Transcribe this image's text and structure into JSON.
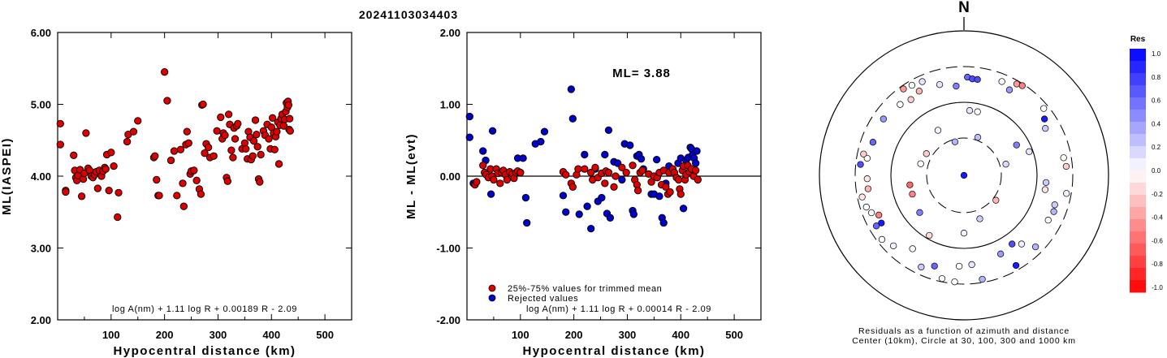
{
  "title": "20241103034403",
  "colors": {
    "accepted": "#dd0000",
    "rejected": "#0000cc"
  },
  "chart_data": [
    {
      "type": "scatter",
      "xlabel": "Hypocentral distance (km)",
      "ylabel": "ML(IASPEI)",
      "xlim": [
        0,
        550
      ],
      "ylim": [
        2.0,
        6.0
      ],
      "xticks": [
        "100",
        "200",
        "300",
        "400",
        "500"
      ],
      "yticks": [
        "2.00",
        "3.00",
        "4.00",
        "5.00",
        "6.00"
      ],
      "formula": "log A(nm) + 1.11 log R + 0.00189 R - 2.09",
      "points": [
        [
          5,
          4.73
        ],
        [
          5,
          4.44
        ],
        [
          15,
          3.8
        ],
        [
          15,
          3.78
        ],
        [
          30,
          4.29
        ],
        [
          32,
          4.08
        ],
        [
          34,
          3.98
        ],
        [
          36,
          3.94
        ],
        [
          38,
          4.01
        ],
        [
          42,
          4.09
        ],
        [
          45,
          3.72
        ],
        [
          48,
          3.96
        ],
        [
          50,
          4.04
        ],
        [
          53,
          4.6
        ],
        [
          57,
          4.11
        ],
        [
          60,
          4.08
        ],
        [
          63,
          4.0
        ],
        [
          66,
          3.98
        ],
        [
          69,
          4.02
        ],
        [
          72,
          4.06
        ],
        [
          75,
          3.83
        ],
        [
          78,
          4.08
        ],
        [
          82,
          4.0
        ],
        [
          85,
          4.07
        ],
        [
          88,
          4.12
        ],
        [
          90,
          4.1
        ],
        [
          92,
          4.3
        ],
        [
          96,
          3.8
        ],
        [
          100,
          4.33
        ],
        [
          105,
          4.14
        ],
        [
          112,
          3.43
        ],
        [
          114,
          3.77
        ],
        [
          130,
          4.48
        ],
        [
          132,
          4.58
        ],
        [
          142,
          4.62
        ],
        [
          150,
          4.77
        ],
        [
          180,
          4.26
        ],
        [
          182,
          4.28
        ],
        [
          185,
          3.95
        ],
        [
          188,
          3.73
        ],
        [
          190,
          3.73
        ],
        [
          200,
          5.45
        ],
        [
          205,
          5.05
        ],
        [
          212,
          4.22
        ],
        [
          218,
          4.35
        ],
        [
          223,
          3.73
        ],
        [
          230,
          4.37
        ],
        [
          234,
          3.9
        ],
        [
          236,
          3.58
        ],
        [
          240,
          4.44
        ],
        [
          242,
          4.62
        ],
        [
          245,
          4.46
        ],
        [
          248,
          4.03
        ],
        [
          250,
          4.07
        ],
        [
          255,
          4.08
        ],
        [
          260,
          3.94
        ],
        [
          265,
          3.82
        ],
        [
          268,
          3.75
        ],
        [
          270,
          4.99
        ],
        [
          272,
          5.0
        ],
        [
          275,
          4.32
        ],
        [
          278,
          4.45
        ],
        [
          282,
          4.4
        ],
        [
          285,
          4.26
        ],
        [
          292,
          4.28
        ],
        [
          298,
          4.63
        ],
        [
          305,
          4.82
        ],
        [
          308,
          4.52
        ],
        [
          310,
          4.6
        ],
        [
          313,
          4.57
        ],
        [
          316,
          3.98
        ],
        [
          318,
          3.93
        ],
        [
          320,
          4.86
        ],
        [
          322,
          4.72
        ],
        [
          325,
          4.36
        ],
        [
          328,
          4.26
        ],
        [
          330,
          4.67
        ],
        [
          332,
          4.52
        ],
        [
          335,
          4.7
        ],
        [
          337,
          4.73
        ],
        [
          345,
          4.38
        ],
        [
          350,
          4.46
        ],
        [
          352,
          4.38
        ],
        [
          355,
          4.24
        ],
        [
          357,
          4.62
        ],
        [
          360,
          4.54
        ],
        [
          362,
          4.23
        ],
        [
          365,
          4.28
        ],
        [
          367,
          4.49
        ],
        [
          370,
          4.78
        ],
        [
          372,
          4.58
        ],
        [
          374,
          4.41
        ],
        [
          376,
          3.96
        ],
        [
          378,
          3.92
        ],
        [
          380,
          4.3
        ],
        [
          385,
          4.63
        ],
        [
          388,
          4.57
        ],
        [
          392,
          4.72
        ],
        [
          395,
          4.52
        ],
        [
          398,
          4.38
        ],
        [
          400,
          4.68
        ],
        [
          402,
          4.81
        ],
        [
          404,
          4.6
        ],
        [
          406,
          4.37
        ],
        [
          408,
          4.55
        ],
        [
          410,
          4.62
        ],
        [
          412,
          4.75
        ],
        [
          414,
          4.17
        ],
        [
          416,
          4.71
        ],
        [
          418,
          4.8
        ],
        [
          420,
          4.86
        ],
        [
          423,
          4.7
        ],
        [
          425,
          4.79
        ],
        [
          427,
          4.9
        ],
        [
          428,
          5.02
        ],
        [
          430,
          4.96
        ],
        [
          431,
          5.04
        ],
        [
          432,
          4.99
        ],
        [
          433,
          4.65
        ],
        [
          434,
          4.8
        ],
        [
          435,
          4.63
        ]
      ]
    },
    {
      "type": "scatter",
      "xlabel": "Hypocentral distance (km)",
      "ylabel": "ML - ML(evt)",
      "xlim": [
        0,
        550
      ],
      "ylim": [
        -2.0,
        2.0
      ],
      "xticks": [
        "100",
        "200",
        "300",
        "400",
        "500"
      ],
      "yticks": [
        "-2.00",
        "-1.00",
        "0.00",
        "1.00",
        "2.00"
      ],
      "ml_label": "ML= 3.88",
      "formula": "log A(nm) + 1.11 log R + 0.00014 R - 2.09",
      "legend": [
        {
          "label": "25%-75% values for trimmed mean",
          "kind": "accepted"
        },
        {
          "label": "Rejected values",
          "kind": "rejected"
        }
      ],
      "accepted": [
        [
          15,
          -0.12
        ],
        [
          18,
          -0.08
        ],
        [
          30,
          0.15
        ],
        [
          33,
          0.05
        ],
        [
          36,
          0.02
        ],
        [
          40,
          -0.02
        ],
        [
          44,
          0.1
        ],
        [
          47,
          0.0
        ],
        [
          50,
          -0.05
        ],
        [
          55,
          0.1
        ],
        [
          58,
          0.04
        ],
        [
          62,
          -0.1
        ],
        [
          65,
          0.05
        ],
        [
          68,
          0.08
        ],
        [
          72,
          0.02
        ],
        [
          75,
          -0.05
        ],
        [
          80,
          0.06
        ],
        [
          85,
          0.03
        ],
        [
          88,
          -0.03
        ],
        [
          92,
          0.05
        ],
        [
          95,
          0.07
        ],
        [
          100,
          0.05
        ],
        [
          180,
          0.06
        ],
        [
          185,
          0.02
        ],
        [
          195,
          -0.1
        ],
        [
          198,
          -0.15
        ],
        [
          205,
          0.02
        ],
        [
          208,
          0.1
        ],
        [
          220,
          0.1
        ],
        [
          232,
          0.05
        ],
        [
          235,
          -0.05
        ],
        [
          240,
          0.12
        ],
        [
          245,
          -0.02
        ],
        [
          252,
          0.04
        ],
        [
          258,
          -0.1
        ],
        [
          260,
          0.07
        ],
        [
          265,
          0.05
        ],
        [
          275,
          -0.15
        ],
        [
          278,
          0.0
        ],
        [
          290,
          0.12
        ],
        [
          298,
          0.05
        ],
        [
          310,
          0.15
        ],
        [
          314,
          -0.05
        ],
        [
          318,
          -0.12
        ],
        [
          320,
          -0.2
        ],
        [
          324,
          0.05
        ],
        [
          328,
          0.08
        ],
        [
          340,
          0.03
        ],
        [
          345,
          -0.08
        ],
        [
          350,
          0.0
        ],
        [
          356,
          -0.02
        ],
        [
          360,
          0.05
        ],
        [
          364,
          -0.12
        ],
        [
          368,
          0.08
        ],
        [
          372,
          -0.15
        ],
        [
          376,
          -0.25
        ],
        [
          378,
          0.05
        ],
        [
          380,
          -0.22
        ],
        [
          385,
          0.1
        ],
        [
          388,
          0.05
        ],
        [
          392,
          -0.02
        ],
        [
          396,
          -0.05
        ],
        [
          398,
          -0.18
        ],
        [
          400,
          -0.25
        ],
        [
          403,
          0.08
        ],
        [
          405,
          0.14
        ],
        [
          408,
          -0.05
        ],
        [
          410,
          0.02
        ],
        [
          413,
          0.15
        ],
        [
          416,
          0.06
        ],
        [
          420,
          0.1
        ],
        [
          424,
          0.0
        ],
        [
          428,
          0.08
        ],
        [
          432,
          -0.05
        ]
      ],
      "rejected": [
        [
          5,
          0.83
        ],
        [
          5,
          0.54
        ],
        [
          12,
          -0.1
        ],
        [
          30,
          0.35
        ],
        [
          35,
          0.22
        ],
        [
          45,
          -0.25
        ],
        [
          48,
          0.63
        ],
        [
          95,
          0.25
        ],
        [
          105,
          0.25
        ],
        [
          110,
          -0.3
        ],
        [
          112,
          -0.65
        ],
        [
          128,
          0.45
        ],
        [
          138,
          0.48
        ],
        [
          145,
          0.62
        ],
        [
          180,
          -0.27
        ],
        [
          185,
          -0.5
        ],
        [
          195,
          1.21
        ],
        [
          198,
          0.8
        ],
        [
          210,
          -0.53
        ],
        [
          220,
          0.3
        ],
        [
          225,
          -0.42
        ],
        [
          232,
          -0.73
        ],
        [
          240,
          0.1
        ],
        [
          245,
          -0.35
        ],
        [
          252,
          -0.3
        ],
        [
          258,
          0.3
        ],
        [
          262,
          -0.52
        ],
        [
          265,
          0.64
        ],
        [
          268,
          -0.58
        ],
        [
          275,
          0.2
        ],
        [
          282,
          0.18
        ],
        [
          290,
          -0.05
        ],
        [
          295,
          0.45
        ],
        [
          305,
          0.43
        ],
        [
          310,
          -0.48
        ],
        [
          312,
          -0.53
        ],
        [
          318,
          0.28
        ],
        [
          322,
          0.3
        ],
        [
          326,
          0.24
        ],
        [
          330,
          0.1
        ],
        [
          345,
          -0.25
        ],
        [
          350,
          -0.25
        ],
        [
          355,
          0.23
        ],
        [
          360,
          -0.28
        ],
        [
          365,
          -0.58
        ],
        [
          368,
          -0.65
        ],
        [
          372,
          -0.1
        ],
        [
          378,
          0.14
        ],
        [
          385,
          0.1
        ],
        [
          395,
          0.18
        ],
        [
          400,
          0.25
        ],
        [
          405,
          -0.45
        ],
        [
          410,
          0.22
        ],
        [
          414,
          0.26
        ],
        [
          418,
          0.4
        ],
        [
          420,
          0.38
        ],
        [
          422,
          0.3
        ],
        [
          425,
          0.25
        ],
        [
          428,
          0.18
        ],
        [
          430,
          0.35
        ]
      ]
    },
    {
      "type": "polar",
      "north_label": "N",
      "caption": [
        "Residuals as a function of azimuth and distance",
        "Center (10km), Circle at 30, 100, 300 and 1000 km"
      ],
      "colorbar_title": "Res",
      "colorbar_ticks": [
        "1.0",
        "0.8",
        "0.6",
        "0.4",
        "0.2",
        "0.0",
        "-0.2",
        "-0.4",
        "-0.6",
        "-0.8",
        "-1.0"
      ],
      "points": [
        [
          0,
          0,
          0.9
        ],
        [
          128,
          28,
          -0.3
        ],
        [
          210,
          48,
          -0.15
        ],
        [
          345,
          24,
          0.3
        ],
        [
          20,
          28,
          0.25
        ],
        [
          75,
          30,
          0.15
        ],
        [
          180,
          40,
          0.05
        ],
        [
          160,
          32,
          0.2
        ],
        [
          230,
          40,
          0.5
        ],
        [
          250,
          38,
          -0.5
        ],
        [
          260,
          38,
          -0.6
        ],
        [
          285,
          31,
          0.0
        ],
        [
          300,
          30,
          -0.2
        ],
        [
          330,
          36,
          0.05
        ],
        [
          5,
          45,
          0.1
        ],
        [
          12,
          45,
          0.0
        ],
        [
          60,
          42,
          0.5
        ],
        [
          95,
          57,
          0.2
        ],
        [
          100,
          57,
          -0.1
        ],
        [
          70,
          48,
          0.1
        ],
        [
          140,
          62,
          0.05
        ],
        [
          145,
          58,
          0.7
        ],
        [
          155,
          60,
          0.4
        ],
        [
          175,
          62,
          0.1
        ],
        [
          183,
          63,
          0.0
        ],
        [
          198,
          66,
          0.6
        ],
        [
          215,
          62,
          0.0
        ],
        [
          240,
          66,
          0.9
        ],
        [
          245,
          65,
          -0.5
        ],
        [
          262,
          67,
          -0.3
        ],
        [
          268,
          67,
          -0.1
        ],
        [
          280,
          68,
          0.0
        ],
        [
          290,
          67,
          0.6
        ],
        [
          305,
          68,
          0.4
        ],
        [
          318,
          66,
          0.0
        ],
        [
          325,
          64,
          -0.2
        ],
        [
          332,
          66,
          -0.3
        ],
        [
          345,
          65,
          0.1
        ],
        [
          355,
          62,
          0.5
        ],
        [
          2,
          68,
          0.6
        ],
        [
          5,
          67,
          0.7
        ],
        [
          8,
          67,
          0.7
        ],
        [
          22,
          70,
          0.0
        ],
        [
          28,
          67,
          0.4
        ],
        [
          55,
          68,
          0.9
        ],
        [
          60,
          65,
          0.2
        ],
        [
          80,
          70,
          0.0
        ],
        [
          85,
          71,
          -0.2
        ],
        [
          108,
          66,
          0.2
        ],
        [
          112,
          67,
          0.3
        ],
        [
          118,
          66,
          0.0
        ],
        [
          135,
          70,
          0.3
        ],
        [
          150,
          72,
          0.9
        ],
        [
          205,
          70,
          0.2
        ],
        [
          225,
          69,
          0.05
        ],
        [
          252,
          71,
          0.0
        ],
        [
          258,
          72,
          -0.1
        ],
        [
          276,
          72,
          0.7
        ],
        [
          282,
          71,
          -0.2
        ],
        [
          325,
          73,
          -0.4
        ],
        [
          330,
          72,
          0.0
        ],
        [
          336,
          71,
          0.1
        ],
        [
          50,
          72,
          0.0
        ],
        [
          30,
          73,
          -0.4
        ],
        [
          33,
          74,
          -0.5
        ],
        [
          170,
          73,
          0.3
        ],
        [
          185,
          74,
          0.0
        ],
        [
          192,
          73,
          0.0
        ],
        [
          232,
          72,
          0.0
        ],
        [
          240,
          70,
          0.6
        ],
        [
          100,
          72,
          0.05
        ],
        [
          248,
          69,
          0.0
        ]
      ]
    }
  ]
}
